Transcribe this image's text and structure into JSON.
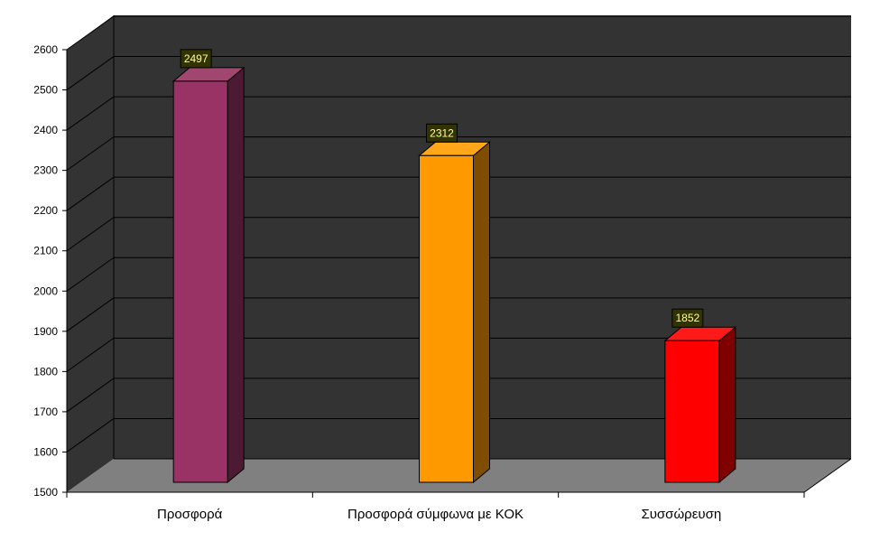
{
  "chart_data": {
    "type": "bar",
    "title": "",
    "xlabel": "",
    "ylabel": "",
    "categories": [
      "Προσφορά",
      "Προσφορά σύμφωνα με ΚΟΚ",
      "Συσσώρευση"
    ],
    "values": [
      2497,
      2312,
      1852
    ],
    "data_labels": [
      "2497",
      "2312",
      "1852"
    ],
    "ylim": [
      1500,
      2600
    ],
    "yticks": [
      1500,
      1600,
      1700,
      1800,
      1900,
      2000,
      2100,
      2200,
      2300,
      2400,
      2500,
      2600
    ],
    "grid": true,
    "legend": "none",
    "three_d": true,
    "colors": {
      "bars": [
        "#993366",
        "#ff9900",
        "#ff0000"
      ],
      "bar_sides": [
        "#4d1a33",
        "#804c00",
        "#800000"
      ],
      "bar_tops": [
        "#a1466f",
        "#ffa61a",
        "#ff1a1a"
      ],
      "back_wall": "#333333",
      "left_wall": "#333333",
      "floor": "#808080",
      "gridlines": "#000000",
      "data_label_bg": "#333300",
      "data_label_text": "#ffff99"
    }
  }
}
